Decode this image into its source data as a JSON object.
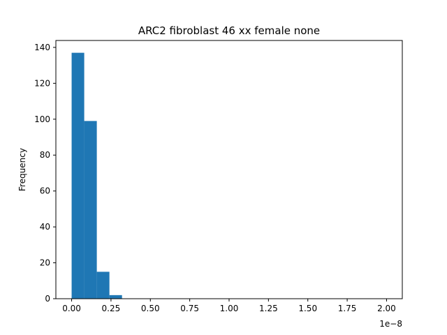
{
  "chart_data": {
    "type": "bar",
    "title": "ARC2 fibroblast 46 xx female none",
    "xlabel": "",
    "ylabel": "Frequency",
    "x_offset_label": "1e−8",
    "bar_color": "#1f77b4",
    "xlim": [
      -0.1,
      2.1
    ],
    "ylim": [
      0,
      143.85
    ],
    "x_ticks": [
      0.0,
      0.25,
      0.5,
      0.75,
      1.0,
      1.25,
      1.5,
      1.75,
      2.0
    ],
    "x_tick_labels": [
      "0.00",
      "0.25",
      "0.50",
      "0.75",
      "1.00",
      "1.25",
      "1.50",
      "1.75",
      "2.00"
    ],
    "y_ticks": [
      0,
      20,
      40,
      60,
      80,
      100,
      120,
      140
    ],
    "y_tick_labels": [
      "0",
      "20",
      "40",
      "60",
      "80",
      "100",
      "120",
      "140"
    ],
    "bins": [
      {
        "start": 0.0,
        "end": 0.08,
        "value": 137
      },
      {
        "start": 0.08,
        "end": 0.16,
        "value": 99
      },
      {
        "start": 0.16,
        "end": 0.24,
        "value": 15
      },
      {
        "start": 0.24,
        "end": 0.32,
        "value": 2
      },
      {
        "start": 0.32,
        "end": 2.0,
        "value": 0
      }
    ],
    "grid": false
  }
}
